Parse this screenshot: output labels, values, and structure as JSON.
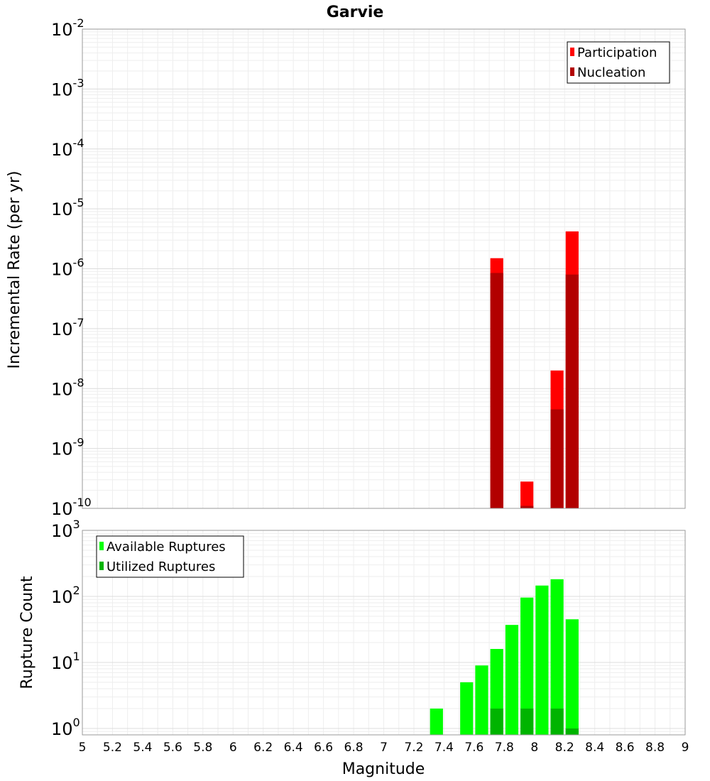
{
  "chart_data": [
    {
      "type": "bar",
      "title": "Garvie",
      "xlabel": "Magnitude",
      "ylabel": "Incremental Rate (per yr)",
      "yscale": "log",
      "ylim": [
        1e-10,
        0.01
      ],
      "xlim": [
        5,
        9
      ],
      "grid": true,
      "legend_position": "top-right",
      "ytick_labels": [
        {
          "base": "10",
          "exp": "-10"
        },
        {
          "base": "10",
          "exp": "-9"
        },
        {
          "base": "10",
          "exp": "-8"
        },
        {
          "base": "10",
          "exp": "-7"
        },
        {
          "base": "10",
          "exp": "-6"
        },
        {
          "base": "10",
          "exp": "-5"
        },
        {
          "base": "10",
          "exp": "-4"
        },
        {
          "base": "10",
          "exp": "-3"
        },
        {
          "base": "10",
          "exp": "-2"
        }
      ],
      "series": [
        {
          "name": "Participation",
          "color": "#ff0000",
          "points": [
            {
              "x": 7.75,
              "y": 1.5e-06
            },
            {
              "x": 7.95,
              "y": 2.8e-10
            },
            {
              "x": 8.15,
              "y": 2e-08
            },
            {
              "x": 8.25,
              "y": 4.2e-06
            }
          ]
        },
        {
          "name": "Nucleation",
          "color": "#b20000",
          "points": [
            {
              "x": 7.75,
              "y": 8.5e-07
            },
            {
              "x": 7.95,
              "y": 1.1e-10
            },
            {
              "x": 8.15,
              "y": 4.5e-09
            },
            {
              "x": 8.25,
              "y": 8e-07
            }
          ]
        }
      ]
    },
    {
      "type": "bar",
      "title": "",
      "xlabel": "Magnitude",
      "ylabel": "Rupture Count",
      "yscale": "log",
      "ylim": [
        0.8,
        1000
      ],
      "xlim": [
        5,
        9
      ],
      "grid": true,
      "legend_position": "top-left",
      "ytick_labels": [
        {
          "base": "10",
          "exp": "0"
        },
        {
          "base": "10",
          "exp": "1"
        },
        {
          "base": "10",
          "exp": "2"
        },
        {
          "base": "10",
          "exp": "3"
        }
      ],
      "xtick_labels": [
        "5",
        "5.2",
        "5.4",
        "5.6",
        "5.8",
        "6",
        "6.2",
        "6.4",
        "6.6",
        "6.8",
        "7",
        "7.2",
        "7.4",
        "7.6",
        "7.8",
        "8",
        "8.2",
        "8.4",
        "8.6",
        "8.8",
        "9"
      ],
      "series": [
        {
          "name": "Available Ruptures",
          "color": "#00ff00",
          "points": [
            {
              "x": 7.35,
              "y": 2
            },
            {
              "x": 7.55,
              "y": 5
            },
            {
              "x": 7.65,
              "y": 9
            },
            {
              "x": 7.75,
              "y": 16
            },
            {
              "x": 7.85,
              "y": 37
            },
            {
              "x": 7.95,
              "y": 96
            },
            {
              "x": 8.05,
              "y": 146
            },
            {
              "x": 8.15,
              "y": 182
            },
            {
              "x": 8.25,
              "y": 45
            }
          ]
        },
        {
          "name": "Utilized Ruptures",
          "color": "#00b400",
          "points": [
            {
              "x": 7.75,
              "y": 2
            },
            {
              "x": 7.95,
              "y": 2
            },
            {
              "x": 8.15,
              "y": 2
            },
            {
              "x": 8.25,
              "y": 1
            }
          ]
        }
      ]
    }
  ]
}
